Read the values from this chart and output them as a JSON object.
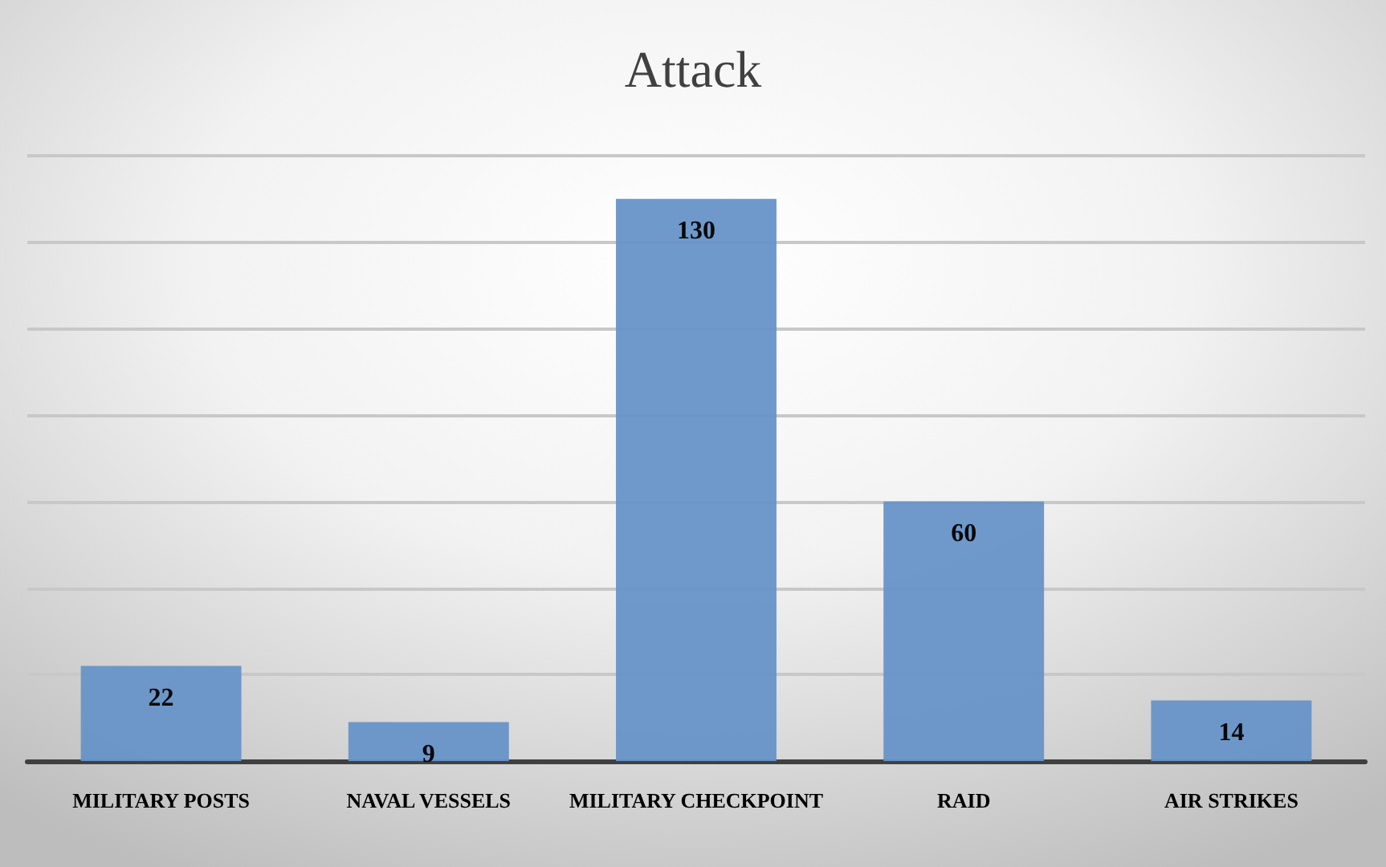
{
  "chart_data": {
    "type": "bar",
    "title": "Attack",
    "categories": [
      "MILITARY POSTS",
      "NAVAL VESSELS",
      "MILITARY CHECKPOINT",
      "RAID",
      "AIR STRIKES"
    ],
    "values": [
      22,
      9,
      130,
      60,
      14
    ],
    "color": "#6793c7",
    "ylim": [
      0,
      140
    ],
    "yticks": [
      {
        "value": 0,
        "label": null
      },
      {
        "value": 20,
        "label": null
      },
      {
        "value": 40,
        "label": null
      },
      {
        "value": 60,
        "label": null
      },
      {
        "value": 80,
        "label": null
      },
      {
        "value": 100,
        "label": null
      },
      {
        "value": 120,
        "label": null
      },
      {
        "value": 140,
        "label": null
      }
    ],
    "grid": "y",
    "tick_labels": "x",
    "data_labels": true
  }
}
